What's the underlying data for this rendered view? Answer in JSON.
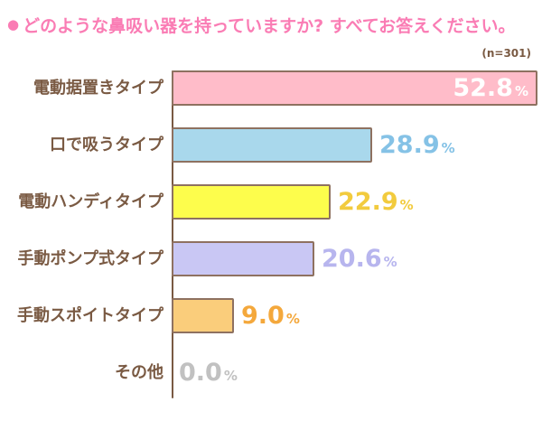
{
  "header": {
    "bullet": "●",
    "title": "どのような鼻吸い器を持っていますか? すべてお答えください。",
    "title_color": "#FA7CB4",
    "sample_size_note": "(n=301)",
    "note_color": "#7A5A43"
  },
  "chart_data": {
    "type": "bar",
    "orientation": "horizontal",
    "title": "どのような鼻吸い器を持っていますか? すべてお答えください。",
    "sample_size": 301,
    "unit": "%",
    "xlim": [
      0,
      52.8
    ],
    "grid": false,
    "legend": "none",
    "axis_color": "#7A5A43",
    "category_label_color": "#7A5A43",
    "bar_border_color": "#8E7160",
    "categories": [
      "電動据置きタイプ",
      "口で吸うタイプ",
      "電動ハンディタイプ",
      "手動ポンプ式タイプ",
      "手動スポイトタイプ",
      "その他"
    ],
    "values": [
      52.8,
      28.9,
      22.9,
      20.6,
      9.0,
      0.0
    ],
    "rows": [
      {
        "label": "電動据置きタイプ",
        "value": 52.8,
        "display_value": "52.8",
        "bar_fill": "#FFBCC9",
        "value_color": "#FFFFFF",
        "value_inside": true
      },
      {
        "label": "口で吸うタイプ",
        "value": 28.9,
        "display_value": "28.9",
        "bar_fill": "#A9D8EC",
        "value_color": "#85C2E6",
        "value_inside": false
      },
      {
        "label": "電動ハンディタイプ",
        "value": 22.9,
        "display_value": "22.9",
        "bar_fill": "#FDFD4C",
        "value_color": "#F2CB3E",
        "value_inside": false
      },
      {
        "label": "手動ポンプ式タイプ",
        "value": 20.6,
        "display_value": "20.6",
        "bar_fill": "#C9C7F4",
        "value_color": "#B7B5EE",
        "value_inside": false
      },
      {
        "label": "手動スポイトタイプ",
        "value": 9.0,
        "display_value": "9.0",
        "bar_fill": "#FACD7B",
        "value_color": "#F4A83C",
        "value_inside": false
      },
      {
        "label": "その他",
        "value": 0.0,
        "display_value": "0.0",
        "bar_fill": null,
        "value_color": "#C1C1C1",
        "value_inside": false
      }
    ]
  }
}
